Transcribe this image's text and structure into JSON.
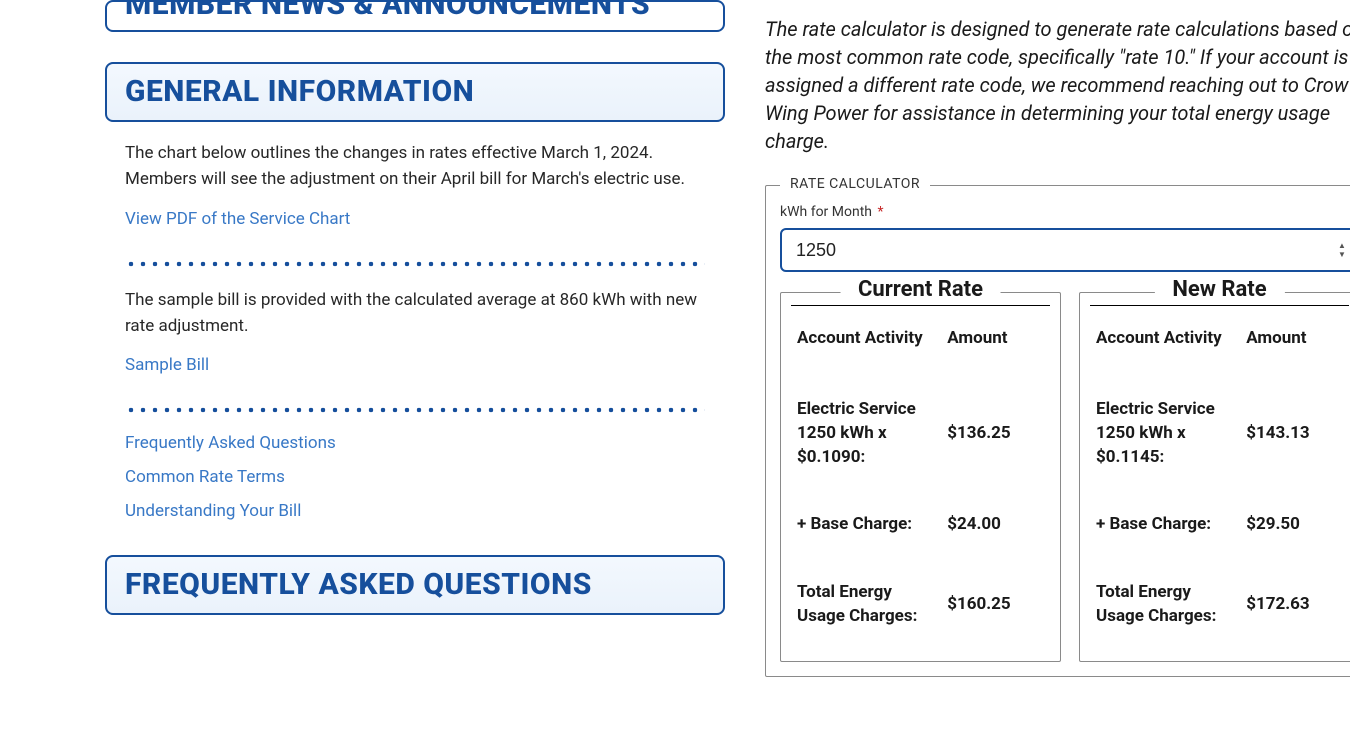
{
  "colors": {
    "brand": "#164f9c",
    "link": "#3878c6",
    "text": "#1a1a1a",
    "required": "#c62828",
    "border_gray": "#8a8a8a"
  },
  "left": {
    "header_member_news": "MEMBER NEWS & ANNOUNCEMENTS",
    "header_general_info": "GENERAL INFORMATION",
    "intro_paragraph": "The chart below outlines the changes in rates effective March 1, 2024. Members will see the adjustment on their April bill for March's electric use.",
    "link_view_pdf": "View PDF of the Service Chart",
    "sample_bill_paragraph": "The sample bill is provided with the calculated average at 860 kWh with new rate adjustment.",
    "link_sample_bill": "Sample Bill",
    "link_faq": "Frequently Asked Questions",
    "link_common_terms": "Common Rate Terms",
    "link_understanding_bill": "Understanding Your Bill",
    "header_faq": "FREQUENTLY ASKED QUESTIONS"
  },
  "right": {
    "intro": "The rate calculator is designed to generate rate calculations based on the most common rate code, specifically \"rate 10.\" If your account is assigned a different rate code, we recommend reaching out to Crow Wing Power for assistance in determining your total energy usage charge.",
    "calc_legend": "RATE CALCULATOR",
    "kwh_label": "kWh for Month",
    "kwh_required_marker": "*",
    "kwh_value": "1250",
    "current": {
      "legend": "Current Rate",
      "col_activity": "Account Activity",
      "col_amount": "Amount",
      "rows": [
        {
          "activity": "Electric Service 1250 kWh x $0.1090:",
          "amount": "$136.25"
        },
        {
          "activity": "+ Base Charge:",
          "amount": "$24.00"
        },
        {
          "activity": "Total Energy Usage Charges:",
          "amount": "$160.25"
        }
      ]
    },
    "new": {
      "legend": "New Rate",
      "col_activity": "Account Activity",
      "col_amount": "Amount",
      "rows": [
        {
          "activity": "Electric Service 1250 kWh x $0.1145:",
          "amount": "$143.13"
        },
        {
          "activity": "+ Base Charge:",
          "amount": "$29.50"
        },
        {
          "activity": "Total Energy Usage Charges:",
          "amount": "$172.63"
        }
      ]
    }
  }
}
